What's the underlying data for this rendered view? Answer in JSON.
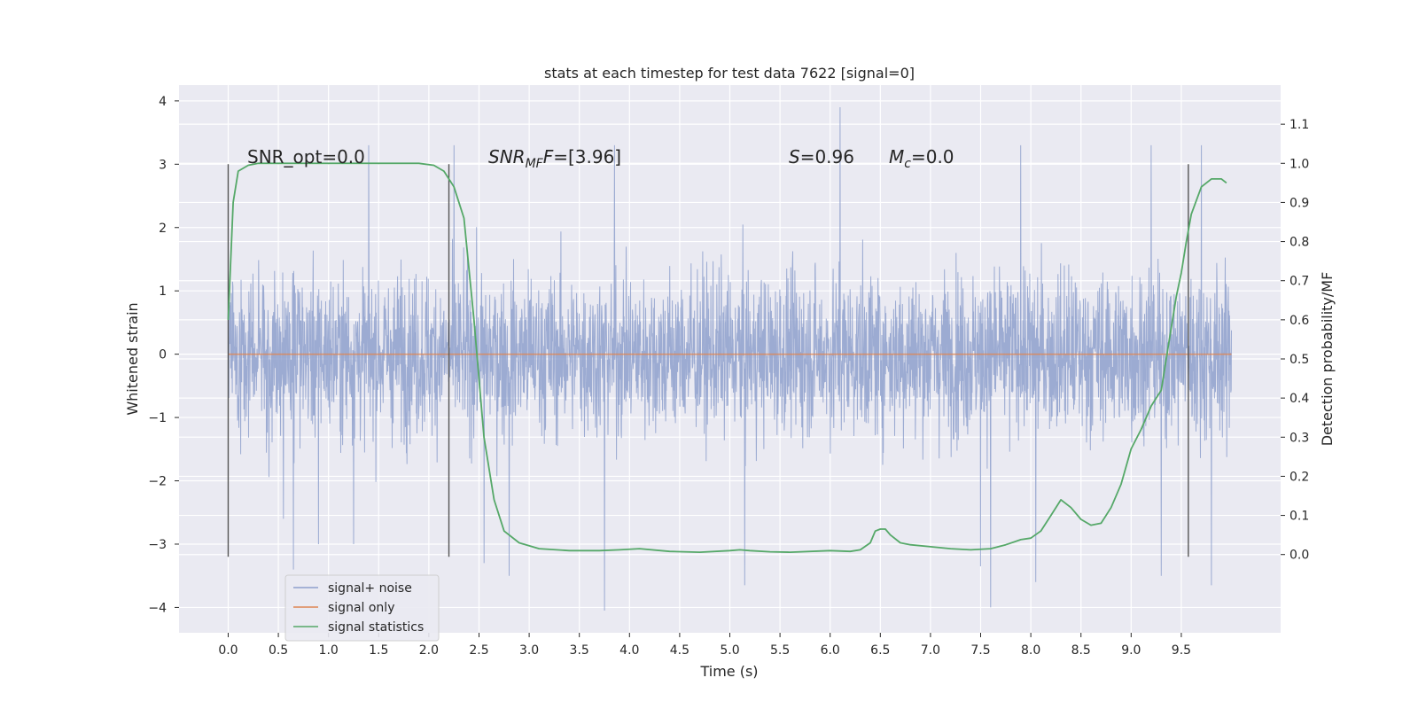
{
  "chart_data": {
    "type": "line",
    "title": "stats at each timestep for test data 7622 [signal=0]",
    "xlabel": "Time (s)",
    "ylabel": "Whitened strain",
    "y2label": "Detection probability/MF",
    "xlim": [
      -0.49,
      10.49
    ],
    "ylim": [
      -4.4,
      4.25
    ],
    "y2lim": [
      -0.2,
      1.2
    ],
    "x_ticks": [
      "0.0",
      "0.5",
      "1.0",
      "1.5",
      "2.0",
      "2.5",
      "3.0",
      "3.5",
      "4.0",
      "4.5",
      "5.0",
      "5.5",
      "6.0",
      "6.5",
      "7.0",
      "7.5",
      "8.0",
      "8.5",
      "9.0",
      "9.5"
    ],
    "y_ticks": [
      "4",
      "3",
      "2",
      "1",
      "0",
      "−1",
      "−2",
      "−3",
      "−4"
    ],
    "y2_ticks": [
      "1.1",
      "1.0",
      "0.9",
      "0.8",
      "0.7",
      "0.6",
      "0.5",
      "0.4",
      "0.3",
      "0.2",
      "0.1",
      "0.0"
    ],
    "grid": true,
    "legend_position": "lower-left",
    "annotations": {
      "snr_opt": "SNR_opt=0.0",
      "snr_mf_label": "SNR",
      "snr_mf_sub": "MF",
      "snr_mf_value": "=[3.96]",
      "s_label": "S",
      "s_value": "=0.96",
      "mc_label": "M",
      "mc_sub": "c",
      "mc_value": "=0.0"
    },
    "vertical_markers_x": [
      0.0,
      2.2,
      9.57
    ],
    "vertical_markers_yrange": [
      -3.2,
      3.0
    ],
    "series": [
      {
        "name": "signal+ noise",
        "color": "#8ea0cc",
        "axis": "left",
        "x_range": [
          0.0,
          10.0
        ],
        "typical_envelope": [
          -1.8,
          2.0
        ],
        "peak_spikes": [
          [
            0.55,
            -2.6
          ],
          [
            0.65,
            -3.4
          ],
          [
            0.9,
            -3.0
          ],
          [
            1.25,
            -3.0
          ],
          [
            2.55,
            -3.3
          ],
          [
            2.8,
            -3.5
          ],
          [
            3.75,
            -4.05
          ],
          [
            3.85,
            -3.4
          ],
          [
            5.15,
            -3.65
          ],
          [
            6.1,
            3.9
          ],
          [
            7.5,
            -3.35
          ],
          [
            7.6,
            -4.0
          ],
          [
            8.05,
            -3.6
          ],
          [
            9.3,
            -3.5
          ],
          [
            9.8,
            -3.65
          ],
          [
            1.4,
            3.3
          ],
          [
            3.85,
            3.3
          ],
          [
            2.25,
            3.3
          ],
          [
            7.9,
            3.3
          ],
          [
            9.2,
            3.3
          ],
          [
            9.7,
            3.3
          ]
        ]
      },
      {
        "name": "signal only",
        "color": "#dd8452",
        "axis": "left",
        "x": [
          0.0,
          10.0
        ],
        "y": [
          0.0,
          0.0
        ]
      },
      {
        "name": "signal statistics",
        "color": "#55a868",
        "axis": "right",
        "x": [
          0.0,
          0.05,
          0.1,
          0.2,
          0.3,
          0.5,
          1.0,
          1.5,
          1.9,
          2.05,
          2.15,
          2.25,
          2.35,
          2.45,
          2.55,
          2.65,
          2.75,
          2.9,
          3.1,
          3.4,
          3.7,
          3.9,
          4.1,
          4.4,
          4.7,
          5.0,
          5.1,
          5.2,
          5.4,
          5.6,
          6.0,
          6.2,
          6.3,
          6.4,
          6.45,
          6.5,
          6.55,
          6.6,
          6.7,
          6.8,
          7.0,
          7.2,
          7.4,
          7.6,
          7.75,
          7.9,
          8.0,
          8.1,
          8.2,
          8.3,
          8.4,
          8.5,
          8.6,
          8.7,
          8.8,
          8.9,
          9.0,
          9.1,
          9.2,
          9.3,
          9.35,
          9.4,
          9.45,
          9.5,
          9.55,
          9.6,
          9.7,
          9.8,
          9.9,
          9.95
        ],
        "y": [
          0.6,
          0.9,
          0.98,
          0.995,
          1.0,
          1.0,
          1.0,
          1.0,
          1.0,
          0.995,
          0.98,
          0.94,
          0.86,
          0.6,
          0.3,
          0.14,
          0.06,
          0.03,
          0.015,
          0.01,
          0.01,
          0.012,
          0.015,
          0.008,
          0.006,
          0.01,
          0.012,
          0.01,
          0.007,
          0.006,
          0.01,
          0.008,
          0.012,
          0.03,
          0.06,
          0.065,
          0.065,
          0.05,
          0.03,
          0.025,
          0.02,
          0.015,
          0.012,
          0.015,
          0.025,
          0.038,
          0.042,
          0.06,
          0.1,
          0.14,
          0.12,
          0.09,
          0.075,
          0.08,
          0.12,
          0.18,
          0.27,
          0.32,
          0.38,
          0.42,
          0.5,
          0.58,
          0.66,
          0.72,
          0.8,
          0.87,
          0.94,
          0.96,
          0.96,
          0.95
        ]
      }
    ]
  }
}
